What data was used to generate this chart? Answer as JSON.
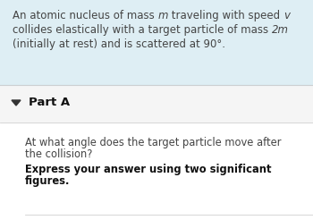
{
  "bg_color": "#ffffff",
  "header_bg": "#deeef4",
  "divider_color": "#d0d0d0",
  "part_section_bg": "#f5f5f5",
  "text_color": "#444444",
  "part_text_color": "#111111",
  "triangle_color": "#333333",
  "font_size_header": 8.5,
  "font_size_part": 9.5,
  "font_size_question": 8.3,
  "part_label": "Part A",
  "header_line1_parts": [
    [
      "An atomic nucleus of mass ",
      "normal"
    ],
    [
      "m",
      "italic"
    ],
    [
      " traveling with speed ",
      "normal"
    ],
    [
      "v",
      "italic"
    ]
  ],
  "header_line2_parts": [
    [
      "collides elastically with a target particle of mass ",
      "normal"
    ],
    [
      "2m",
      "italic"
    ]
  ],
  "header_line3_parts": [
    [
      "(initially at rest) and is scattered at 90°.",
      "normal"
    ]
  ],
  "question_line1": "At what angle does the target particle move after",
  "question_line2": "the collision?",
  "express_line1": "Express your answer using two significant",
  "express_line2": "figures."
}
